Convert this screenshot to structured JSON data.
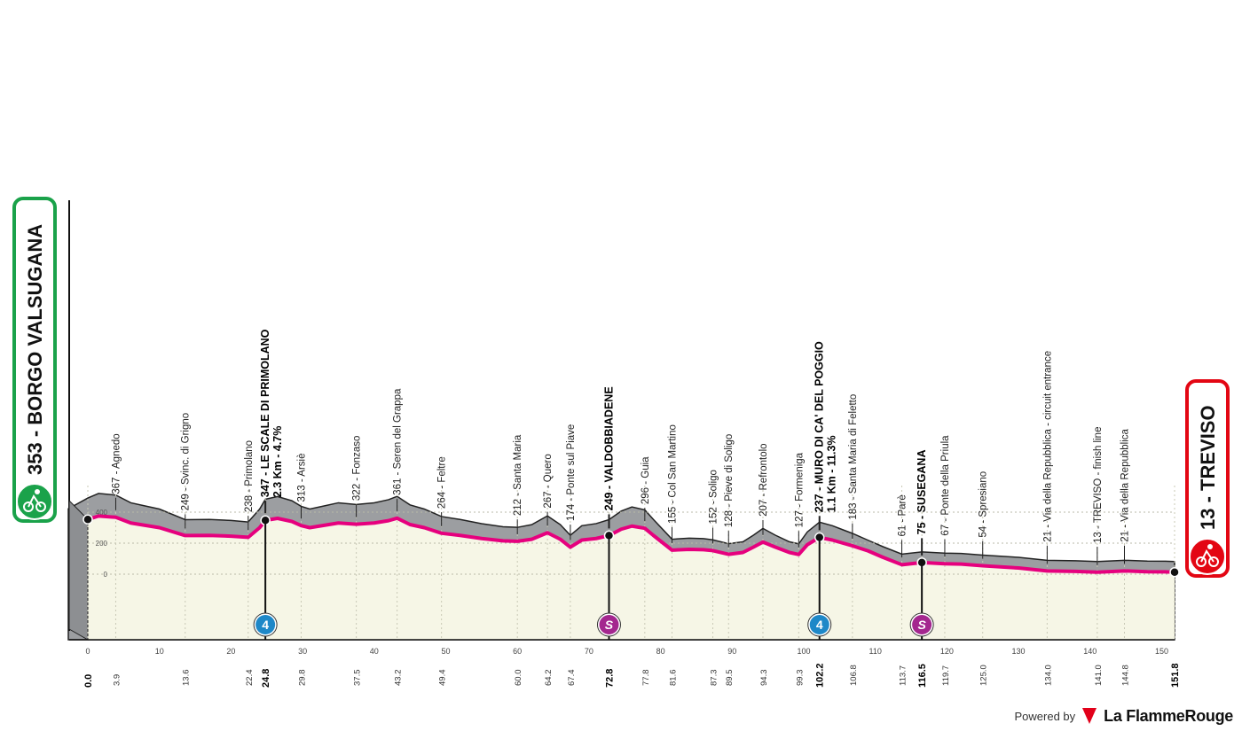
{
  "chart_data": {
    "type": "area",
    "title": "",
    "xlabel": "",
    "ylabel": "",
    "xlim": [
      0,
      151.8
    ],
    "y_axis_ticks": [
      "400",
      "200",
      "0"
    ],
    "x_axis_ticks": [
      0,
      10,
      20,
      30,
      40,
      50,
      60,
      70,
      80,
      90,
      100,
      110,
      120,
      130,
      140,
      150
    ],
    "start": {
      "altitude": "353",
      "name": "BORGO VALSUGANA",
      "color": "#1aa24a"
    },
    "finish": {
      "altitude": "13",
      "name": "TREVISO",
      "color": "#e30613"
    },
    "waypoints": [
      {
        "km": "0.0",
        "x": 0.0,
        "label": "",
        "bold": true
      },
      {
        "km": "3.9",
        "x": 3.9,
        "label": "367 - Agnedo",
        "bold": false
      },
      {
        "km": "13.6",
        "x": 13.6,
        "label": "249 - Svinc. di Grigno",
        "bold": false
      },
      {
        "km": "22.4",
        "x": 22.4,
        "label": "238 - Primolano",
        "bold": false
      },
      {
        "km": "24.8",
        "x": 24.8,
        "label": "347 - LE SCALE DI PRIMOLANO",
        "label2": "2.3 Km - 4.7%",
        "bold": true
      },
      {
        "km": "29.8",
        "x": 29.8,
        "label": "313 - Arsiè",
        "bold": false
      },
      {
        "km": "37.5",
        "x": 37.5,
        "label": "322 - Fonzaso",
        "bold": false
      },
      {
        "km": "43.2",
        "x": 43.2,
        "label": "361 - Seren del Grappa",
        "bold": false
      },
      {
        "km": "49.4",
        "x": 49.4,
        "label": "264 - Feltre",
        "bold": false
      },
      {
        "km": "60.0",
        "x": 60.0,
        "label": "212 - Santa Maria",
        "bold": false
      },
      {
        "km": "64.2",
        "x": 64.2,
        "label": "267 - Quero",
        "bold": false
      },
      {
        "km": "67.4",
        "x": 67.4,
        "label": "174 - Ponte sul Piave",
        "bold": false
      },
      {
        "km": "72.8",
        "x": 72.8,
        "label": "249 - VALDOBBIADENE",
        "bold": true
      },
      {
        "km": "77.8",
        "x": 77.8,
        "label": "296 - Guia",
        "bold": false
      },
      {
        "km": "81.6",
        "x": 81.6,
        "label": "155 - Col San Martino",
        "bold": false
      },
      {
        "km": "87.3",
        "x": 87.3,
        "label": "152 - Soligo",
        "bold": false
      },
      {
        "km": "89.5",
        "x": 89.5,
        "label": "128 - Pieve di Soligo",
        "bold": false
      },
      {
        "km": "94.3",
        "x": 94.3,
        "label": "207 - Refrontolo",
        "bold": false
      },
      {
        "km": "99.3",
        "x": 99.3,
        "label": "127 - Formeniga",
        "bold": false
      },
      {
        "km": "102.2",
        "x": 102.2,
        "label": "237 - MURO DI CA' DEL POGGIO",
        "label2": "1.1 Km - 11.3%",
        "bold": true
      },
      {
        "km": "106.8",
        "x": 106.8,
        "label": "183 - Santa Maria di Feletto",
        "bold": false
      },
      {
        "km": "113.7",
        "x": 113.7,
        "label": "61 - Parè",
        "bold": false
      },
      {
        "km": "116.5",
        "x": 116.5,
        "label": "75 - SUSEGANA",
        "bold": true
      },
      {
        "km": "119.7",
        "x": 119.7,
        "label": "67 - Ponte della Priula",
        "bold": false
      },
      {
        "km": "125.0",
        "x": 125.0,
        "label": "54 - Spresiano",
        "bold": false
      },
      {
        "km": "134.0",
        "x": 134.0,
        "label": "21 - Via della Repubblica - circuit entrance",
        "bold": false
      },
      {
        "km": "141.0",
        "x": 141.0,
        "label": "13 - TREVISO - finish line",
        "bold": false
      },
      {
        "km": "144.8",
        "x": 144.8,
        "label": "21 - Via della Repubblica",
        "bold": false
      },
      {
        "km": "151.8",
        "x": 151.8,
        "label": "",
        "bold": true
      }
    ],
    "profile_x": [
      0,
      1.5,
      3.9,
      6,
      8,
      10,
      13.6,
      17,
      20,
      22.4,
      24,
      24.8,
      26.5,
      28.5,
      29.8,
      31,
      33,
      35,
      37.5,
      40,
      42,
      43.2,
      45,
      47,
      49.4,
      52,
      55,
      58,
      60,
      62,
      64.2,
      66,
      67.4,
      69,
      71,
      72.8,
      74.5,
      76,
      77.8,
      79,
      81.6,
      84,
      86,
      87.3,
      89.5,
      91.5,
      93,
      94.3,
      96,
      98,
      99.3,
      100.5,
      102.2,
      104,
      105.5,
      106.8,
      109,
      111,
      113.7,
      116.5,
      119.7,
      122,
      125,
      130,
      134,
      138,
      141,
      144.8,
      148,
      150.5,
      151.8
    ],
    "profile_alt": [
      353,
      375,
      367,
      330,
      315,
      300,
      249,
      250,
      245,
      238,
      300,
      347,
      360,
      340,
      313,
      300,
      315,
      330,
      322,
      330,
      345,
      361,
      320,
      300,
      264,
      250,
      230,
      215,
      212,
      225,
      267,
      225,
      174,
      220,
      230,
      249,
      290,
      310,
      296,
      250,
      155,
      160,
      158,
      152,
      128,
      140,
      175,
      207,
      175,
      140,
      127,
      190,
      237,
      220,
      200,
      183,
      150,
      110,
      61,
      75,
      67,
      65,
      54,
      40,
      21,
      18,
      13,
      21,
      16,
      15,
      13
    ],
    "climbs": [
      {
        "x": 24.8,
        "badge": "4",
        "type": "cat-4"
      },
      {
        "x": 72.8,
        "badge": "S",
        "type": "sprint"
      },
      {
        "x": 102.2,
        "badge": "4",
        "type": "cat-4"
      },
      {
        "x": 116.5,
        "badge": "S",
        "type": "sprint"
      }
    ],
    "colors": {
      "road": "#e6007e",
      "fill": "#f6f6e6",
      "relief": "#9c9ea1",
      "sprint": "#a4278f",
      "climb": "#1e88c8"
    }
  },
  "footer": {
    "powered_by": "Powered by",
    "brand": "La FlammeRouge"
  }
}
